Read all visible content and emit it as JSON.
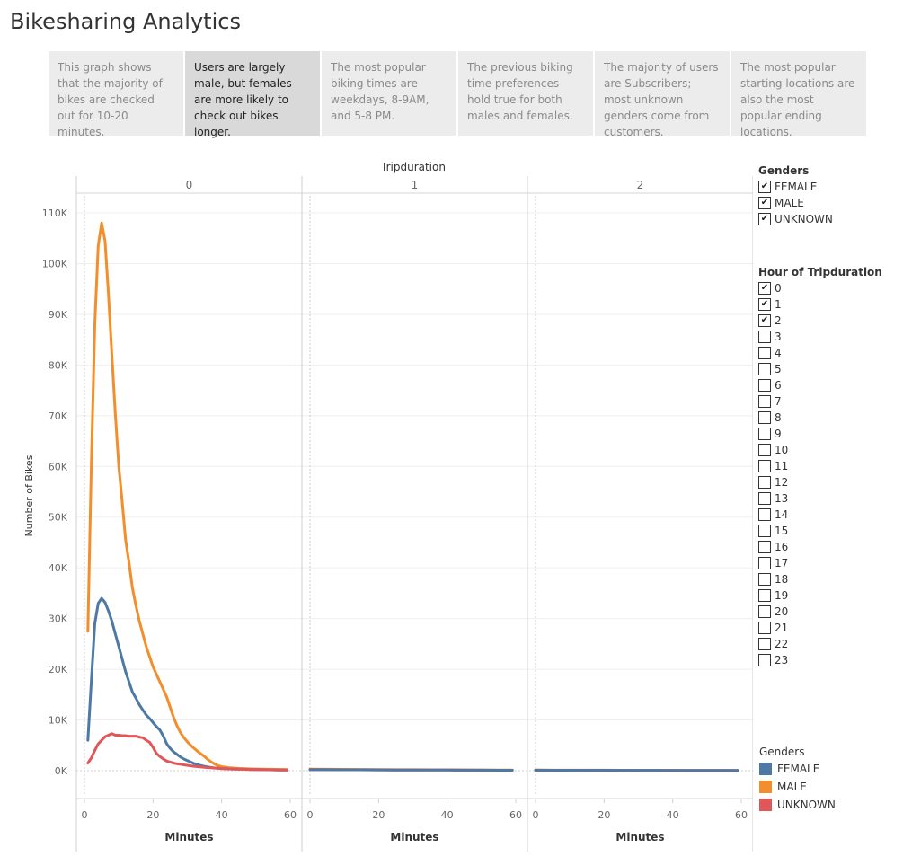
{
  "title": "Bikesharing Analytics",
  "story_points": [
    {
      "text": "This graph shows that the majority of bikes are checked out for 10-20 minutes.",
      "active": false
    },
    {
      "text": "Users are largely male, but females are more likely to check out bikes longer.",
      "active": true
    },
    {
      "text": "The most popular biking times are weekdays, 8-9AM, and 5-8 PM.",
      "active": false
    },
    {
      "text": "The previous biking time preferences hold true for both males and females.",
      "active": false
    },
    {
      "text": "The majority of users are Subscribers; most unknown genders come from customers.",
      "active": false
    },
    {
      "text": "The most popular starting locations are also the most popular ending locations.",
      "active": false
    }
  ],
  "gender_filter": {
    "title": "Genders",
    "items": [
      {
        "label": "FEMALE",
        "checked": true
      },
      {
        "label": "MALE",
        "checked": true
      },
      {
        "label": "UNKNOWN",
        "checked": true
      }
    ]
  },
  "hour_filter": {
    "title": "Hour of Tripduration",
    "items": [
      {
        "label": "0",
        "checked": true
      },
      {
        "label": "1",
        "checked": true
      },
      {
        "label": "2",
        "checked": true
      },
      {
        "label": "3",
        "checked": false
      },
      {
        "label": "4",
        "checked": false
      },
      {
        "label": "5",
        "checked": false
      },
      {
        "label": "6",
        "checked": false
      },
      {
        "label": "7",
        "checked": false
      },
      {
        "label": "8",
        "checked": false
      },
      {
        "label": "9",
        "checked": false
      },
      {
        "label": "10",
        "checked": false
      },
      {
        "label": "11",
        "checked": false
      },
      {
        "label": "12",
        "checked": false
      },
      {
        "label": "13",
        "checked": false
      },
      {
        "label": "14",
        "checked": false
      },
      {
        "label": "15",
        "checked": false
      },
      {
        "label": "16",
        "checked": false
      },
      {
        "label": "17",
        "checked": false
      },
      {
        "label": "18",
        "checked": false
      },
      {
        "label": "19",
        "checked": false
      },
      {
        "label": "20",
        "checked": false
      },
      {
        "label": "21",
        "checked": false
      },
      {
        "label": "22",
        "checked": false
      },
      {
        "label": "23",
        "checked": false
      }
    ]
  },
  "color_legend": {
    "title": "Genders",
    "items": [
      {
        "label": "FEMALE",
        "color": "#4e79a7"
      },
      {
        "label": "MALE",
        "color": "#f28e2b"
      },
      {
        "label": "UNKNOWN",
        "color": "#e15759"
      }
    ]
  },
  "chart_data": {
    "type": "line",
    "title": "",
    "facet_title": "Tripduration",
    "facets": [
      "0",
      "1",
      "2"
    ],
    "xlabel": "Minutes",
    "ylabel": "Number of Bikes",
    "xlim": [
      0,
      60
    ],
    "ylim": [
      0,
      115000
    ],
    "xticks": [
      0,
      20,
      40,
      60
    ],
    "yticks": [
      0,
      10000,
      20000,
      30000,
      40000,
      50000,
      60000,
      70000,
      80000,
      90000,
      100000,
      110000
    ],
    "ytick_labels": [
      "0K",
      "10K",
      "20K",
      "30K",
      "40K",
      "50K",
      "60K",
      "70K",
      "80K",
      "90K",
      "100K",
      "110K"
    ],
    "grid": true,
    "legend": "right",
    "panels": [
      {
        "facet": "0",
        "x": [
          1,
          2,
          3,
          4,
          5,
          6,
          7,
          8,
          9,
          10,
          11,
          12,
          13,
          14,
          15,
          16,
          17,
          18,
          19,
          20,
          21,
          22,
          23,
          24,
          25,
          26,
          27,
          28,
          29,
          30,
          31,
          32,
          33,
          34,
          35,
          36,
          37,
          38,
          39,
          40,
          41,
          42,
          43,
          44,
          45,
          46,
          47,
          48,
          49,
          50,
          51,
          52,
          53,
          54,
          55,
          56,
          57,
          58,
          59
        ],
        "series": [
          {
            "name": "MALE",
            "values": [
              27500,
              60000,
              88000,
              103500,
              108000,
              104500,
              94000,
              82000,
              70500,
              60000,
              53000,
              45500,
              41000,
              36000,
              32500,
              29500,
              27000,
              24500,
              22500,
              20500,
              19000,
              17500,
              16000,
              14500,
              12500,
              10500,
              8800,
              7500,
              6500,
              5700,
              5000,
              4400,
              3800,
              3300,
              2800,
              2200,
              1700,
              1300,
              1000,
              800,
              700,
              600,
              550,
              500,
              450,
              420,
              400,
              380,
              360,
              340,
              320,
              300,
              290,
              280,
              270,
              260,
              250,
              240,
              230
            ]
          },
          {
            "name": "FEMALE",
            "values": [
              6000,
              17500,
              29000,
              33000,
              34000,
              33200,
              31500,
              29500,
              27000,
              24500,
              22000,
              19500,
              17500,
              15500,
              14300,
              13000,
              12000,
              11000,
              10300,
              9500,
              8700,
              8000,
              6800,
              5300,
              4400,
              3700,
              3200,
              2700,
              2300,
              2000,
              1700,
              1400,
              1200,
              1000,
              850,
              720,
              620,
              540,
              480,
              430,
              390,
              360,
              340,
              320,
              300,
              280,
              260,
              240,
              220,
              210,
              200,
              190,
              180,
              170,
              160,
              150,
              140,
              130,
              120
            ]
          },
          {
            "name": "UNKNOWN",
            "values": [
              1500,
              2500,
              4000,
              5300,
              6000,
              6700,
              7000,
              7300,
              7000,
              7000,
              6900,
              6900,
              6800,
              6800,
              6800,
              6600,
              6500,
              6000,
              5600,
              4600,
              3400,
              2800,
              2300,
              1900,
              1700,
              1500,
              1350,
              1250,
              1150,
              1050,
              950,
              870,
              800,
              730,
              670,
              610,
              560,
              510,
              470,
              430,
              400,
              370,
              340,
              320,
              300,
              280,
              260,
              240,
              230,
              220,
              210,
              200,
              190,
              180,
              170,
              160,
              150,
              140,
              130
            ]
          }
        ]
      },
      {
        "facet": "1",
        "x": [
          0,
          5,
          10,
          15,
          20,
          25,
          30,
          35,
          40,
          45,
          50,
          55,
          59
        ],
        "series": [
          {
            "name": "MALE",
            "values": [
              300,
              280,
              260,
              240,
              220,
              200,
              190,
              180,
              170,
              160,
              150,
              140,
              130
            ]
          },
          {
            "name": "UNKNOWN",
            "values": [
              200,
              190,
              180,
              170,
              160,
              150,
              140,
              130,
              120,
              110,
              100,
              95,
              90
            ]
          },
          {
            "name": "FEMALE",
            "values": [
              220,
              200,
              180,
              170,
              160,
              150,
              140,
              130,
              120,
              110,
              100,
              95,
              90
            ]
          }
        ]
      },
      {
        "facet": "2",
        "x": [
          0,
          5,
          10,
          15,
          20,
          25,
          30,
          35,
          40,
          45,
          50,
          55,
          59
        ],
        "series": [
          {
            "name": "MALE",
            "values": [
              120,
              115,
              110,
              105,
              100,
              95,
              90,
              85,
              80,
              75,
              70,
              65,
              60
            ]
          },
          {
            "name": "UNKNOWN",
            "values": [
              90,
              85,
              80,
              75,
              70,
              65,
              60,
              55,
              50,
              48,
              46,
              44,
              42
            ]
          },
          {
            "name": "FEMALE",
            "values": [
              100,
              95,
              90,
              85,
              80,
              75,
              70,
              65,
              60,
              55,
              50,
              48,
              46
            ]
          }
        ]
      }
    ]
  }
}
